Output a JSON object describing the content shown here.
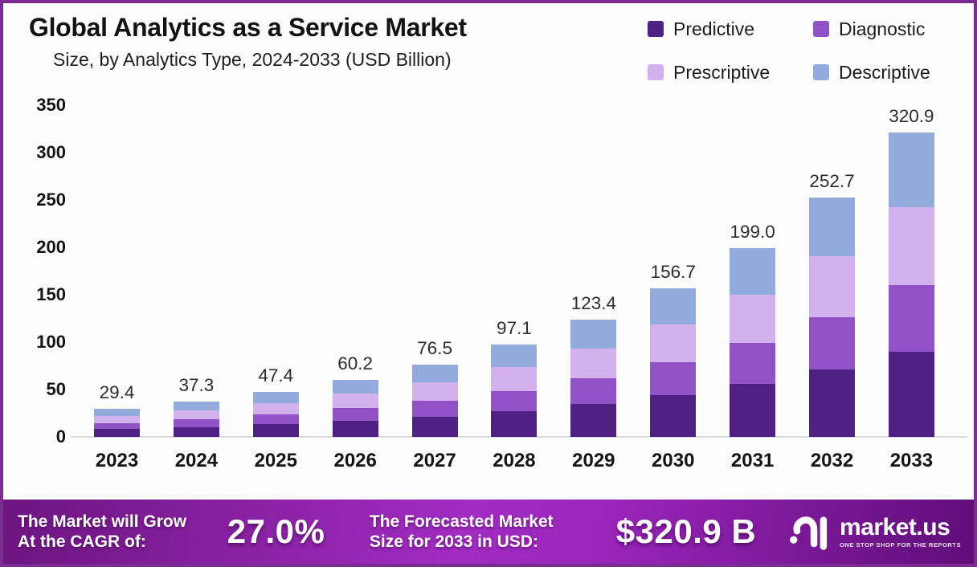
{
  "title": "Global Analytics as a Service Market",
  "subtitle": "Size, by Analytics Type, 2024-2033 (USD Billion)",
  "chart_data": {
    "type": "bar",
    "stacked": true,
    "title": "Global Analytics as a Service Market Size, by Analytics Type, 2024-2033 (USD Billion)",
    "categories": [
      "2023",
      "2024",
      "2025",
      "2026",
      "2027",
      "2028",
      "2029",
      "2030",
      "2031",
      "2032",
      "2033"
    ],
    "series": [
      {
        "name": "Predictive",
        "color": "#4f2184",
        "values": [
          8.2,
          10.4,
          13.3,
          16.9,
          21.4,
          27.2,
          34.6,
          43.9,
          55.7,
          70.8,
          89.9
        ]
      },
      {
        "name": "Diagnostic",
        "color": "#9152c7",
        "values": [
          6.5,
          8.2,
          10.4,
          13.2,
          16.8,
          21.4,
          27.1,
          34.5,
          43.8,
          55.6,
          70.6
        ]
      },
      {
        "name": "Prescriptive",
        "color": "#d3b1ec",
        "values": [
          7.5,
          9.5,
          12.1,
          15.4,
          19.5,
          24.8,
          31.5,
          40.0,
          50.7,
          64.4,
          81.8
        ]
      },
      {
        "name": "Descriptive",
        "color": "#92aadc",
        "values": [
          7.2,
          9.2,
          11.6,
          14.7,
          18.8,
          23.7,
          30.2,
          38.3,
          48.8,
          61.9,
          78.6
        ]
      }
    ],
    "totals": [
      29.4,
      37.3,
      47.4,
      60.2,
      76.5,
      97.1,
      123.4,
      156.7,
      199.0,
      252.7,
      320.9
    ],
    "total_labels": [
      "29.4",
      "37.3",
      "47.4",
      "60.2",
      "76.5",
      "97.1",
      "123.4",
      "156.7",
      "199.0",
      "252.7",
      "320.9"
    ],
    "ylim": [
      0,
      350
    ],
    "yticks": [
      "0",
      "50",
      "100",
      "150",
      "200",
      "250",
      "300",
      "350"
    ],
    "grid": false,
    "legend_position": "top-right"
  },
  "banner": {
    "cagr_label_line1": "The Market will Grow",
    "cagr_label_line2": "At the CAGR of:",
    "cagr_value": "27.0%",
    "forecast_label_line1": "The Forecasted Market",
    "forecast_label_line2": "Size for 2033 in USD:",
    "forecast_value": "$320.9 B",
    "brand": {
      "name": "market.us",
      "tagline": "ONE STOP SHOP FOR THE REPORTS"
    }
  },
  "colors": {
    "frame_border": "#7c2b90",
    "background": "#fdfdfe",
    "axis_line": "#dcdcdc",
    "text_dark": "#141414",
    "banner_gradient_left": "#6d1580",
    "banner_gradient_mid": "#a22cc3",
    "banner_gradient_right": "#5f0d79"
  }
}
